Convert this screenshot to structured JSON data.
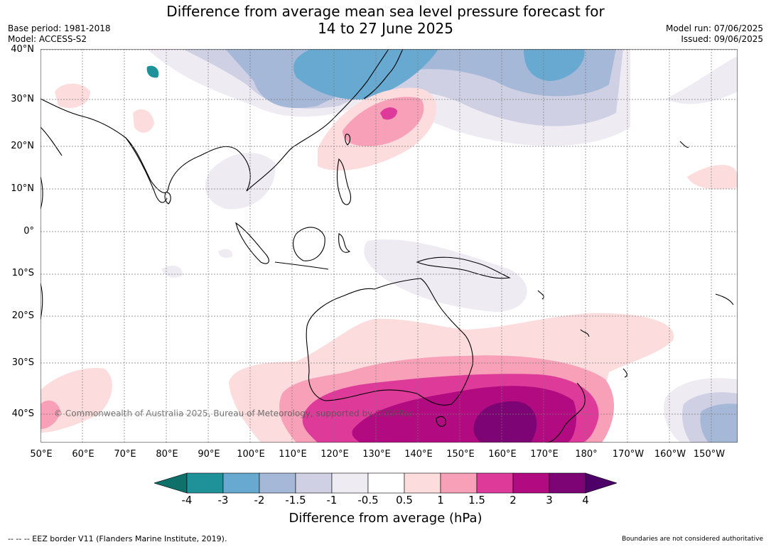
{
  "header": {
    "title_line1": "Difference from average mean sea level pressure forecast for",
    "title_line2": "14 to 27 June 2025",
    "base_period": "Base period: 1981-2018",
    "model": "Model: ACCESS-S2",
    "model_run": "Model run: 07/06/2025",
    "issued": "Issued: 09/06/2025"
  },
  "map": {
    "lat_labels": [
      "40°N",
      "30°N",
      "20°N",
      "10°N",
      "0°",
      "10°S",
      "20°S",
      "30°S",
      "40°S"
    ],
    "lon_labels": [
      "50°E",
      "60°E",
      "70°E",
      "80°E",
      "90°E",
      "100°E",
      "110°E",
      "120°E",
      "130°E",
      "140°E",
      "150°E",
      "160°E",
      "170°E",
      "180°",
      "170°W",
      "160°W",
      "150°W"
    ],
    "copyright": "© Commonwealth of Australia 2025, Bureau of Meteorology, supported by COSPPac"
  },
  "colorbar": {
    "ticks": [
      "-4",
      "-3",
      "-2",
      "-1.5",
      "-1",
      "-0.5",
      "0.5",
      "1",
      "1.5",
      "2",
      "3",
      "4"
    ],
    "colors": [
      "#0e7068",
      "#1f9198",
      "#67a9d0",
      "#a6b8d8",
      "#cfd0e4",
      "#efebf3",
      "#ffffff",
      "#fcdcdc",
      "#f7a0b8",
      "#de3a9a",
      "#b20a80",
      "#7c0474",
      "#4c0068"
    ],
    "label": "Difference from average (hPa)"
  },
  "footer": {
    "eez_note": "--  --  -- EEZ border V11 (Flanders Marine Institute, 2019).",
    "disclaimer": "Boundaries are not considered authoritative"
  }
}
